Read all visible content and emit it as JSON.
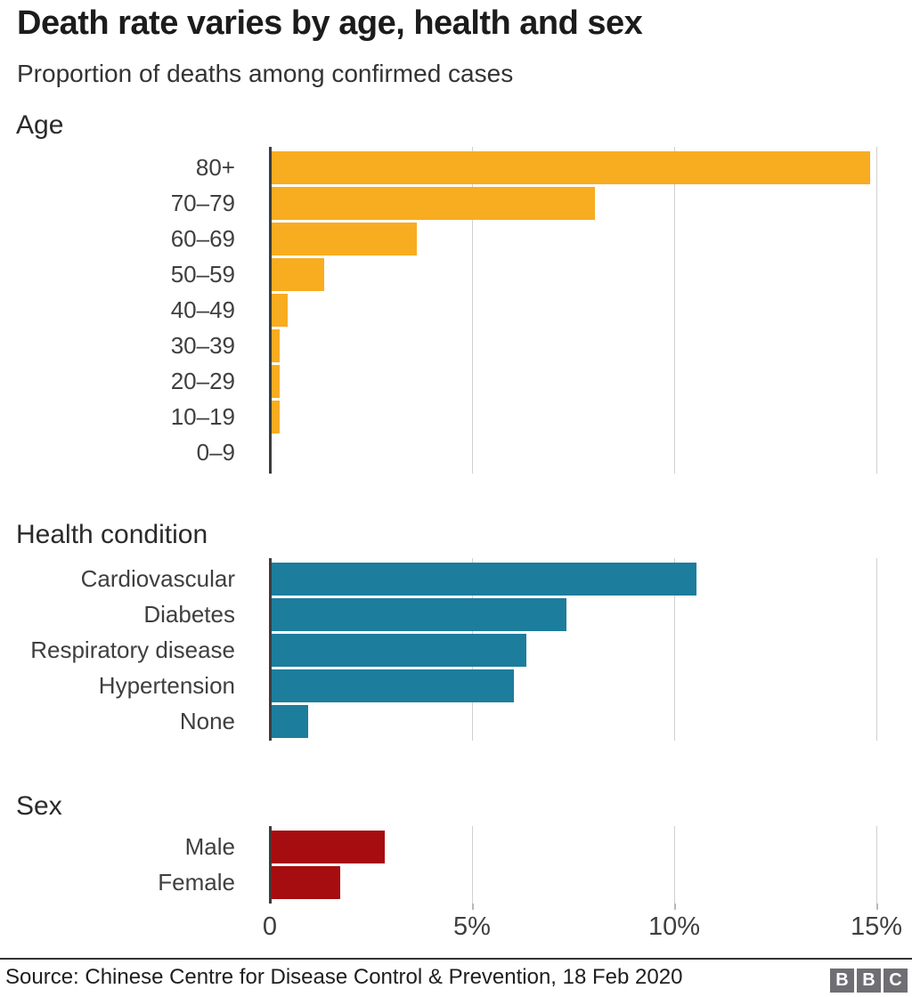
{
  "header": {
    "title": "Death rate varies by age, health and sex",
    "subtitle": "Proportion of deaths among confirmed cases"
  },
  "axis": {
    "tick_labels": [
      "0",
      "5%",
      "10%",
      "15%"
    ],
    "tick_values": [
      0,
      5,
      10,
      15
    ],
    "unit": "%",
    "xlim": [
      0,
      15.8
    ],
    "grid": "vertical-light"
  },
  "chart_data": [
    {
      "type": "bar",
      "title": "Age",
      "orientation": "horizontal",
      "bar_color": "#f8ac20",
      "categories": [
        "80+",
        "70–79",
        "60–69",
        "50–59",
        "40–49",
        "30–39",
        "20–29",
        "10–19",
        "0–9"
      ],
      "values": [
        14.8,
        8.0,
        3.6,
        1.3,
        0.4,
        0.2,
        0.2,
        0.2,
        0
      ]
    },
    {
      "type": "bar",
      "title": "Health condition",
      "orientation": "horizontal",
      "bar_color": "#1d7d9c",
      "categories": [
        "Cardiovascular",
        "Diabetes",
        "Respiratory disease",
        "Hypertension",
        "None"
      ],
      "values": [
        10.5,
        7.3,
        6.3,
        6.0,
        0.9
      ]
    },
    {
      "type": "bar",
      "title": "Sex",
      "orientation": "horizontal",
      "bar_color": "#a50d10",
      "categories": [
        "Male",
        "Female"
      ],
      "values": [
        2.8,
        1.7
      ]
    }
  ],
  "footer": {
    "source": "Source: Chinese Centre for Disease Control & Prevention, 18 Feb 2020",
    "logo_blocks": [
      "B",
      "B",
      "C"
    ]
  },
  "colors": {
    "age_bar": "#f8ac20",
    "health_bar": "#1d7d9c",
    "sex_bar": "#a50d10",
    "axis_line": "#3d3d3d",
    "gridline": "#d0d0d0",
    "title_text": "#1c1c1c",
    "label_text": "#3f3f3f",
    "logo_gray": "#6e6e73"
  }
}
